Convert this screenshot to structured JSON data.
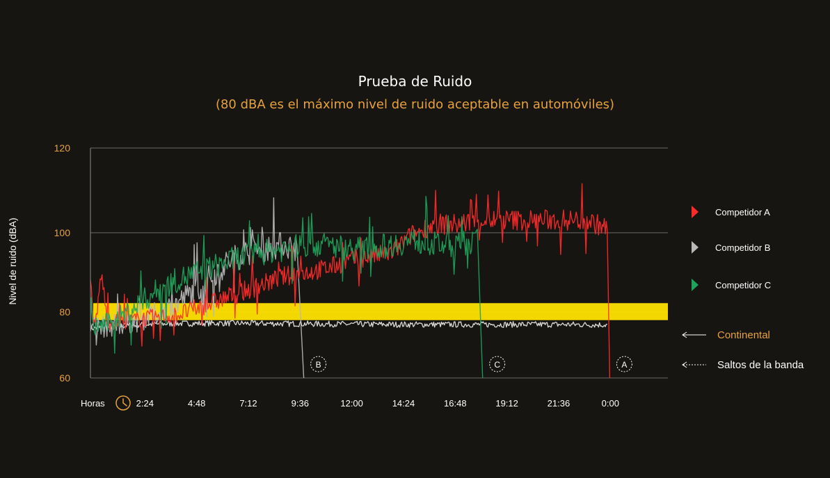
{
  "colors": {
    "background": "#161512",
    "accent_orange": "#e8a23a",
    "competitor_a": "#ff2a2a",
    "competitor_b": "#b8b8b8",
    "competitor_c": "#1fa35a",
    "continental": "#e6e6e6",
    "threshold_band": "#ffe100"
  },
  "chart_data": {
    "type": "line",
    "title": "Prueba de Ruido",
    "subtitle": "(80 dBA es el máximo nivel de ruido aceptable en automóviles)",
    "ylabel": "Nivel de ruido (dBA)",
    "xlabel": "Horas",
    "xlabel_icon": "clock-icon",
    "ylim": [
      60,
      120
    ],
    "y_ticks": [
      {
        "value": 120,
        "label": "120"
      },
      {
        "value": 100,
        "label": "100"
      },
      {
        "value": 80,
        "label": "80"
      },
      {
        "value": 60,
        "label": "60"
      }
    ],
    "x_range_hours": [
      0,
      26.8
    ],
    "x_ticks": [
      {
        "hours": 2.4,
        "label": "2:24"
      },
      {
        "hours": 4.8,
        "label": "4:48"
      },
      {
        "hours": 7.2,
        "label": "7:12"
      },
      {
        "hours": 9.6,
        "label": "9:36"
      },
      {
        "hours": 12.0,
        "label": "12:00"
      },
      {
        "hours": 14.4,
        "label": "14:24"
      },
      {
        "hours": 16.8,
        "label": "16:48"
      },
      {
        "hours": 19.2,
        "label": "19:12"
      },
      {
        "hours": 21.6,
        "label": "21:36"
      },
      {
        "hours": 24.0,
        "label": "0:00"
      }
    ],
    "threshold_band": {
      "low": 79,
      "high": 81
    },
    "series": [
      {
        "name": "Competidor A",
        "key": "a",
        "color": "#ff2a2a",
        "noise": 2.5,
        "points": [
          [
            0,
            88
          ],
          [
            0.2,
            74
          ],
          [
            0.5,
            90
          ],
          [
            0.8,
            77
          ],
          [
            1.5,
            77
          ],
          [
            2.5,
            78
          ],
          [
            4,
            79
          ],
          [
            5.5,
            82
          ],
          [
            7,
            85
          ],
          [
            8,
            87
          ],
          [
            9,
            89
          ],
          [
            10,
            90
          ],
          [
            11,
            91
          ],
          [
            12,
            93
          ],
          [
            13,
            94
          ],
          [
            14,
            95
          ],
          [
            14.8,
            99
          ],
          [
            15.5,
            101
          ],
          [
            16,
            102
          ],
          [
            17,
            102
          ],
          [
            18,
            103
          ],
          [
            19,
            103
          ],
          [
            20,
            103
          ],
          [
            21,
            103
          ],
          [
            22,
            103
          ],
          [
            23,
            103
          ],
          [
            24,
            101
          ],
          [
            24.1,
            60
          ]
        ]
      },
      {
        "name": "Competidor B",
        "key": "b",
        "color": "#b8b8b8",
        "noise": 3.5,
        "points": [
          [
            0,
            75
          ],
          [
            1,
            76
          ],
          [
            2,
            77
          ],
          [
            3,
            79
          ],
          [
            4,
            82
          ],
          [
            5,
            86
          ],
          [
            5.8,
            90
          ],
          [
            6.5,
            93
          ],
          [
            7.2,
            95
          ],
          [
            8,
            96
          ],
          [
            9,
            97
          ],
          [
            9.6,
            96
          ],
          [
            9.9,
            60
          ]
        ]
      },
      {
        "name": "Competidor C",
        "key": "c",
        "color": "#1fa35a",
        "noise": 3.2,
        "points": [
          [
            0,
            75
          ],
          [
            1,
            77
          ],
          [
            2,
            81
          ],
          [
            3,
            85
          ],
          [
            4,
            88
          ],
          [
            5,
            90
          ],
          [
            6,
            92
          ],
          [
            7,
            94
          ],
          [
            8,
            95
          ],
          [
            9,
            96
          ],
          [
            10,
            97
          ],
          [
            11,
            97
          ],
          [
            12,
            96
          ],
          [
            13,
            96
          ],
          [
            14,
            97
          ],
          [
            15,
            98
          ],
          [
            16,
            97
          ],
          [
            17,
            97
          ],
          [
            18,
            98
          ],
          [
            18.2,
            60
          ]
        ]
      },
      {
        "name": "Continental",
        "key": "cont",
        "color": "#e6e6e6",
        "noise": 0.9,
        "points": [
          [
            0,
            75
          ],
          [
            1,
            75.5
          ],
          [
            2,
            76
          ],
          [
            3,
            76.3
          ],
          [
            4,
            76.5
          ],
          [
            6,
            76.6
          ],
          [
            8,
            76.5
          ],
          [
            10,
            76.4
          ],
          [
            12,
            76.3
          ],
          [
            14,
            76.2
          ],
          [
            16,
            76.2
          ],
          [
            18,
            76.2
          ],
          [
            20,
            76.2
          ],
          [
            22,
            76.2
          ],
          [
            24,
            76.1
          ],
          [
            25.5,
            75.5
          ]
        ]
      }
    ],
    "band_jumps": [
      {
        "label": "B",
        "hours": 9.9,
        "color": "#b8b8b8"
      },
      {
        "label": "C",
        "hours": 18.2,
        "color": "#1fa35a"
      },
      {
        "label": "A",
        "hours": 24.1,
        "color": "#ff2a2a"
      }
    ]
  },
  "legend": {
    "items": [
      {
        "label": "Competidor A",
        "color": "#ff2a2a"
      },
      {
        "label": "Competidor B",
        "color": "#b8b8b8"
      },
      {
        "label": "Competidor C",
        "color": "#1fa35a"
      }
    ],
    "continental": {
      "label": "Continental",
      "color": "#e8a23a"
    },
    "jumps": {
      "label": "Saltos de la banda",
      "color": "#ffffff"
    }
  }
}
